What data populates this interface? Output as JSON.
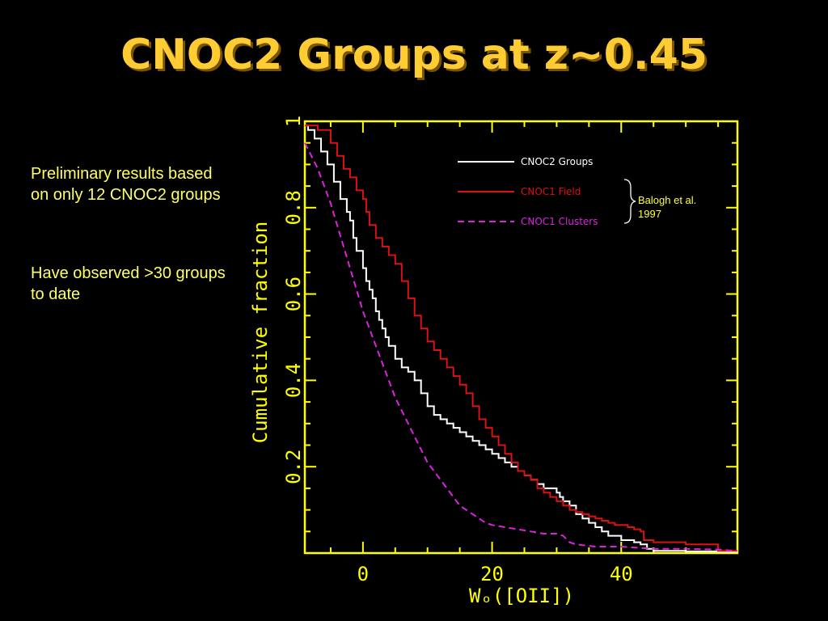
{
  "slide": {
    "title": "CNOC2 Groups at z~0.45",
    "notes": [
      "Preliminary results based on only 12 CNOC2 groups",
      "Have observed >30 groups to date"
    ]
  },
  "chart_data": {
    "type": "line",
    "xlabel": "Wₒ([OII])",
    "ylabel": "Cumulative fraction",
    "xlim": [
      -9,
      58
    ],
    "ylim": [
      0,
      1
    ],
    "x_ticks": [
      0,
      20,
      40
    ],
    "y_ticks": [
      0.2,
      0.4,
      0.6,
      0.8,
      1
    ],
    "y_tick_labels": [
      "0.2",
      "0.4",
      "0.6",
      "0.8",
      "1"
    ],
    "legend": {
      "position": "top-right"
    },
    "bracket_annotation": "Balogh et al. 1997",
    "colors": {
      "axes": "#FFFF00",
      "groups": "#FFFFFF",
      "field": "#DD1111",
      "clusters": "#DD22DD"
    },
    "series": [
      {
        "name": "CNOC2 Groups",
        "style": "solid-step",
        "x": [
          -9,
          -8.5,
          -7.5,
          -6.5,
          -5.5,
          -4.5,
          -3.5,
          -2.5,
          -2,
          -1.5,
          -1,
          0,
          0.5,
          1,
          1.5,
          2,
          2.5,
          3,
          3.5,
          4,
          5,
          6,
          7,
          8,
          9,
          10,
          11,
          12,
          13,
          14,
          15,
          16,
          17,
          18,
          19,
          20,
          21,
          22,
          23,
          24,
          25,
          26,
          27,
          28,
          30,
          30.5,
          31,
          32,
          33,
          34,
          35,
          36,
          37,
          38,
          40,
          42,
          43,
          44,
          45,
          50,
          55,
          58
        ],
        "y": [
          0.99,
          0.98,
          0.96,
          0.93,
          0.9,
          0.86,
          0.82,
          0.79,
          0.77,
          0.73,
          0.7,
          0.66,
          0.63,
          0.61,
          0.59,
          0.56,
          0.54,
          0.52,
          0.5,
          0.48,
          0.45,
          0.43,
          0.42,
          0.4,
          0.37,
          0.34,
          0.32,
          0.31,
          0.3,
          0.29,
          0.28,
          0.27,
          0.26,
          0.25,
          0.24,
          0.23,
          0.22,
          0.21,
          0.2,
          0.19,
          0.18,
          0.17,
          0.16,
          0.15,
          0.14,
          0.13,
          0.12,
          0.11,
          0.09,
          0.08,
          0.07,
          0.06,
          0.05,
          0.04,
          0.03,
          0.025,
          0.02,
          0.01,
          0.005,
          0.004,
          0.003,
          0.003
        ]
      },
      {
        "name": "CNOC1 Field",
        "style": "solid-step",
        "x": [
          -9,
          -7,
          -5,
          -4,
          -3,
          -2,
          -1,
          0,
          0.5,
          1,
          2,
          3,
          4,
          5,
          6,
          7,
          8,
          9,
          10,
          11,
          12,
          13,
          14,
          15,
          16,
          17,
          18,
          19,
          20,
          21,
          22,
          23,
          24,
          25,
          26,
          27,
          28,
          29,
          30,
          31,
          32,
          33,
          34,
          35,
          36,
          37,
          38,
          39,
          40,
          41,
          42,
          43,
          43.5,
          45,
          50,
          53,
          55,
          58
        ],
        "y": [
          0.99,
          0.98,
          0.95,
          0.92,
          0.89,
          0.87,
          0.84,
          0.82,
          0.79,
          0.76,
          0.73,
          0.71,
          0.69,
          0.67,
          0.63,
          0.59,
          0.55,
          0.52,
          0.49,
          0.47,
          0.45,
          0.43,
          0.41,
          0.39,
          0.37,
          0.34,
          0.31,
          0.29,
          0.27,
          0.25,
          0.23,
          0.21,
          0.19,
          0.18,
          0.17,
          0.15,
          0.14,
          0.13,
          0.12,
          0.11,
          0.1,
          0.095,
          0.09,
          0.085,
          0.08,
          0.075,
          0.07,
          0.065,
          0.065,
          0.06,
          0.055,
          0.05,
          0.03,
          0.025,
          0.02,
          0.02,
          0.005,
          0.005
        ]
      },
      {
        "name": "CNOC1 Clusters",
        "style": "dashed",
        "x": [
          -9,
          -8,
          -7,
          -6,
          -5,
          -4,
          -3,
          -2,
          -1,
          0,
          1,
          2,
          3,
          4,
          5,
          6,
          7,
          8,
          9,
          10,
          11,
          12,
          13,
          14,
          15,
          16,
          17,
          18,
          19,
          20,
          22,
          24,
          26,
          28,
          30,
          31,
          32,
          33,
          36,
          40,
          45,
          50,
          55,
          58
        ],
        "y": [
          0.95,
          0.92,
          0.89,
          0.85,
          0.81,
          0.76,
          0.71,
          0.66,
          0.61,
          0.56,
          0.52,
          0.48,
          0.44,
          0.4,
          0.36,
          0.33,
          0.3,
          0.27,
          0.24,
          0.21,
          0.19,
          0.17,
          0.15,
          0.13,
          0.11,
          0.1,
          0.09,
          0.08,
          0.07,
          0.065,
          0.06,
          0.055,
          0.05,
          0.045,
          0.045,
          0.04,
          0.025,
          0.02,
          0.015,
          0.015,
          0.01,
          0.01,
          0.008,
          0.005
        ]
      }
    ]
  }
}
